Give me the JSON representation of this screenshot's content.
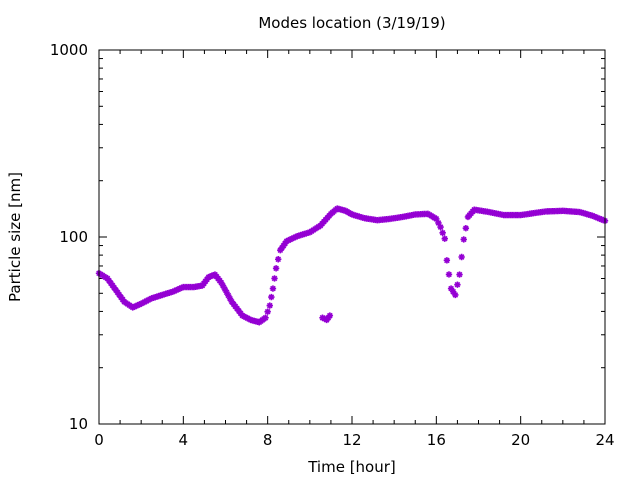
{
  "chart_data": {
    "type": "scatter",
    "title": "Modes location (3/19/19)",
    "xlabel": "Time [hour]",
    "ylabel": "Particle size [nm]",
    "xlim": [
      0,
      24
    ],
    "ylim": [
      10,
      1000
    ],
    "yscale": "log",
    "grid": false,
    "legend": "none",
    "x_ticks": [
      0,
      4,
      8,
      12,
      16,
      20,
      24
    ],
    "x_tick_labels": [
      "0",
      "4",
      "8",
      "12",
      "16",
      "20",
      "24"
    ],
    "y_ticks": [
      10,
      100,
      1000
    ],
    "y_tick_labels": [
      "10",
      "100",
      "1000"
    ],
    "marker_color": "#9400d3",
    "series": [
      {
        "points": [
          [
            0.0,
            64
          ],
          [
            0.4,
            60
          ],
          [
            0.8,
            52
          ],
          [
            1.2,
            45
          ],
          [
            1.6,
            42
          ],
          [
            2.0,
            44
          ],
          [
            2.5,
            47
          ],
          [
            3.0,
            49
          ],
          [
            3.5,
            51
          ],
          [
            4.0,
            54
          ],
          [
            4.5,
            54
          ],
          [
            4.9,
            55
          ],
          [
            5.2,
            61
          ],
          [
            5.5,
            63
          ],
          [
            5.8,
            57
          ],
          [
            6.3,
            45
          ],
          [
            6.8,
            38
          ],
          [
            7.2,
            36
          ],
          [
            7.6,
            35
          ],
          [
            7.9,
            37
          ],
          [
            8.1,
            43
          ],
          [
            8.25,
            53
          ],
          [
            8.4,
            68
          ],
          [
            8.6,
            85
          ],
          [
            8.9,
            95
          ],
          [
            9.4,
            101
          ],
          [
            10.0,
            106
          ],
          [
            10.5,
            115
          ],
          [
            11.0,
            133
          ],
          [
            11.3,
            142
          ],
          [
            11.7,
            138
          ],
          [
            12.0,
            132
          ],
          [
            12.6,
            126
          ],
          [
            13.2,
            123
          ],
          [
            13.8,
            125
          ],
          [
            14.4,
            128
          ],
          [
            15.0,
            132
          ],
          [
            15.6,
            133
          ],
          [
            16.0,
            125
          ],
          [
            16.2,
            113
          ],
          [
            16.4,
            98
          ],
          [
            16.5,
            75
          ],
          [
            16.7,
            53
          ],
          [
            16.9,
            49
          ],
          [
            17.1,
            63
          ],
          [
            17.3,
            97
          ],
          [
            17.5,
            128
          ],
          [
            17.8,
            140
          ],
          [
            18.5,
            136
          ],
          [
            19.2,
            131
          ],
          [
            20.0,
            131
          ],
          [
            20.6,
            134
          ],
          [
            21.2,
            137
          ],
          [
            22.0,
            138
          ],
          [
            22.8,
            136
          ],
          [
            23.4,
            130
          ],
          [
            24.0,
            122
          ]
        ]
      },
      {
        "points": [
          [
            10.6,
            37
          ],
          [
            10.8,
            36
          ],
          [
            10.95,
            38
          ]
        ]
      }
    ]
  }
}
